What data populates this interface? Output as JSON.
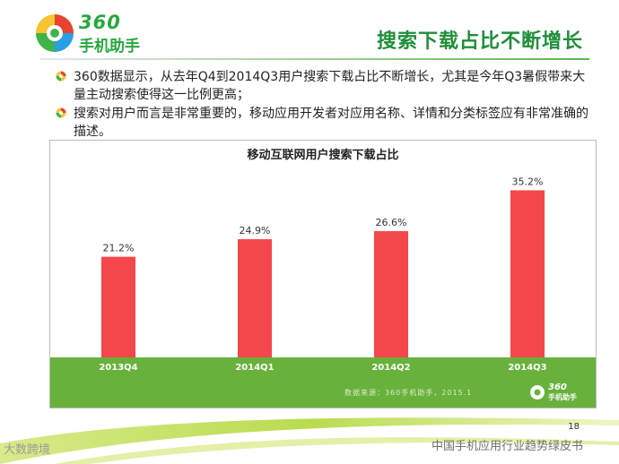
{
  "header": {
    "logo_number": "360",
    "logo_name": "手机助手",
    "title": "搜索下载占比不断增长"
  },
  "bullets": [
    "360数据显示，从去年Q4到2014Q3用户搜索下载占比不断增长，尤其是今年Q3暑假带来大量主动搜索使得这一比例更高；",
    "搜索对用户而言是非常重要的，移动应用开发者对应用名称、详情和分类标签应有非常准确的描述。"
  ],
  "chart_data": {
    "type": "bar",
    "title": "移动互联网用户搜索下载占比",
    "categories": [
      "2013Q4",
      "2014Q1",
      "2014Q2",
      "2014Q3"
    ],
    "values": [
      21.2,
      24.9,
      26.6,
      35.2
    ],
    "data_labels": [
      "21.2%",
      "24.9%",
      "26.6%",
      "35.2%"
    ],
    "ylim": [
      0,
      40
    ],
    "grid": false,
    "bar_color": "#f4474b",
    "axis_band_color": "#68b13b"
  },
  "source": "数据来源：360手机助手，2015.1",
  "badge": {
    "number": "360",
    "name": "手机助手"
  },
  "footer": {
    "page_number": "18",
    "text": "中国手机应用行业趋势绿皮书",
    "watermark": "大数跨境"
  },
  "colors": {
    "title_green": "#1f8f3a",
    "bar_red": "#f4474b",
    "band_green": "#68b13b"
  }
}
